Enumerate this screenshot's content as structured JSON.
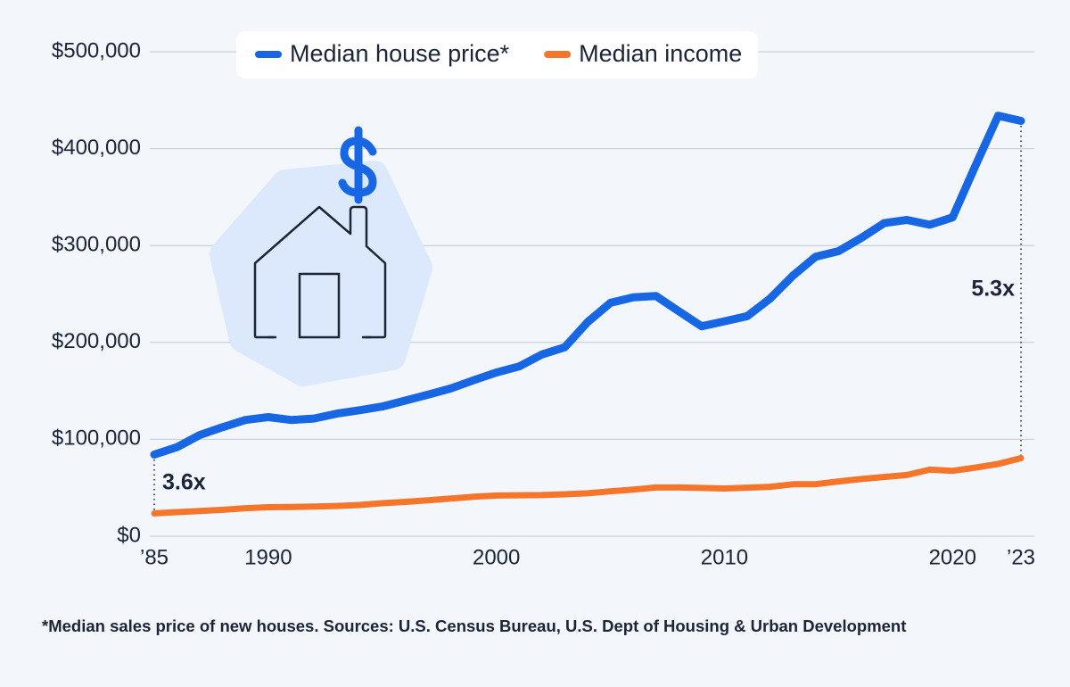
{
  "chart_data": {
    "type": "line",
    "x": [
      1985,
      1986,
      1987,
      1988,
      1989,
      1990,
      1991,
      1992,
      1993,
      1994,
      1995,
      1996,
      1997,
      1998,
      1999,
      2000,
      2001,
      2002,
      2003,
      2004,
      2005,
      2006,
      2007,
      2008,
      2009,
      2010,
      2011,
      2012,
      2013,
      2014,
      2015,
      2016,
      2017,
      2018,
      2019,
      2020,
      2021,
      2022,
      2023
    ],
    "series": [
      {
        "name": "Median house price*",
        "color": "#1766e3",
        "values": [
          84300,
          92000,
          104500,
          112500,
          120000,
          122900,
          120000,
          121500,
          126500,
          130000,
          133900,
          140000,
          146000,
          152500,
          161000,
          169000,
          175200,
          187600,
          195000,
          221000,
          240900,
          246500,
          247900,
          232100,
          216700,
          221800,
          227200,
          245200,
          268900,
          288500,
          294200,
          307800,
          323100,
          326400,
          321500,
          329000,
          382000,
          434000,
          428600
        ]
      },
      {
        "name": "Median income",
        "color": "#f5762b",
        "values": [
          23618,
          24897,
          26061,
          27225,
          28906,
          29943,
          30126,
          30636,
          31241,
          32264,
          34076,
          35492,
          37005,
          38885,
          40696,
          41990,
          42228,
          42409,
          43318,
          44334,
          46326,
          48201,
          50233,
          50303,
          49777,
          49276,
          50054,
          51017,
          53585,
          53657,
          56516,
          59039,
          61136,
          63179,
          68703,
          67521,
          70784,
          74580,
          80610
        ]
      }
    ],
    "xlim": [
      1985,
      2023
    ],
    "xticks": [
      {
        "value": 1985,
        "label": "’85"
      },
      1990,
      2000,
      2010,
      2020,
      {
        "value": 2023,
        "label": "’23"
      }
    ],
    "ylim": [
      0,
      500000
    ],
    "yticks": [
      {
        "value": 0,
        "label": "$0"
      },
      {
        "value": 100000,
        "label": "$100,000"
      },
      {
        "value": 200000,
        "label": "$200,000"
      },
      {
        "value": 300000,
        "label": "$300,000"
      },
      {
        "value": 400000,
        "label": "$400,000"
      },
      {
        "value": 500000,
        "label": "$500,000"
      }
    ],
    "grid": true,
    "legend": "top",
    "annotations": [
      "3.6x",
      "5.3x"
    ],
    "footnote": "*Median sales price of new houses.  Sources: U.S. Census Bureau, U.S. Dept of Housing  & Urban Development"
  }
}
